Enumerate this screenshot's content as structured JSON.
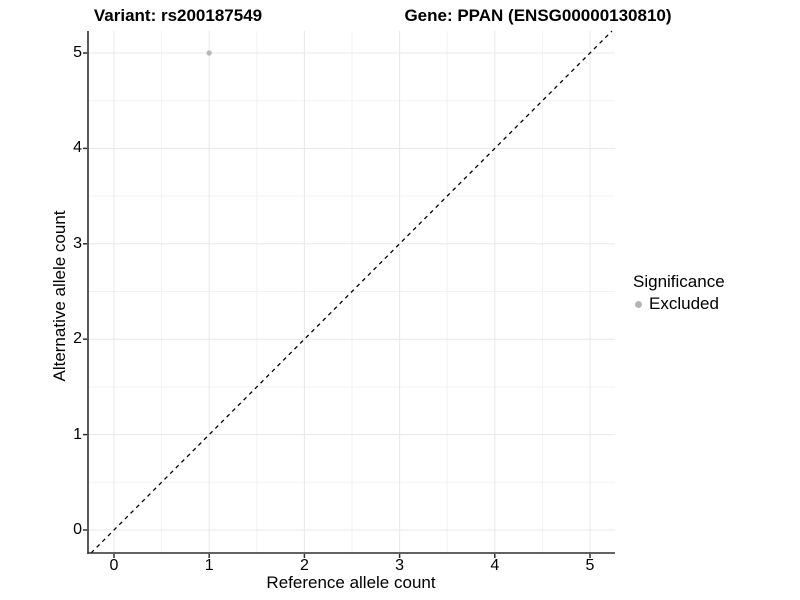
{
  "figure": {
    "titles": {
      "left": "Variant: rs200187549",
      "right": "Gene: PPAN (ENSG00000130810)"
    }
  },
  "chart_data": {
    "type": "scatter",
    "title": "Variant: rs200187549 — Gene: PPAN (ENSG00000130810)",
    "xlabel": "Reference allele count",
    "ylabel": "Alternative allele count",
    "xlim": [
      -0.27,
      5.27
    ],
    "ylim": [
      -0.24,
      5.23
    ],
    "x_ticks": [
      0,
      1,
      2,
      3,
      4,
      5
    ],
    "y_ticks": [
      0,
      1,
      2,
      3,
      4,
      5
    ],
    "grid": "major+minor",
    "series": [
      {
        "name": "Excluded",
        "color": "#b5b5b5",
        "points": [
          {
            "x": 1,
            "y": 5
          }
        ]
      }
    ],
    "reference_line": {
      "type": "identity",
      "style": "dashed",
      "color": "#000000"
    },
    "legend": {
      "title": "Significance",
      "position": "right",
      "items": [
        {
          "label": "Excluded",
          "color": "#b5b5b5"
        }
      ]
    },
    "colors": {
      "background": "#ffffff",
      "grid_major": "#e8e8e8",
      "grid_minor": "#f2f2f2",
      "axis_line": "#2f2f2f",
      "tick_mark": "#2f2f2f",
      "text": "#000000"
    }
  }
}
